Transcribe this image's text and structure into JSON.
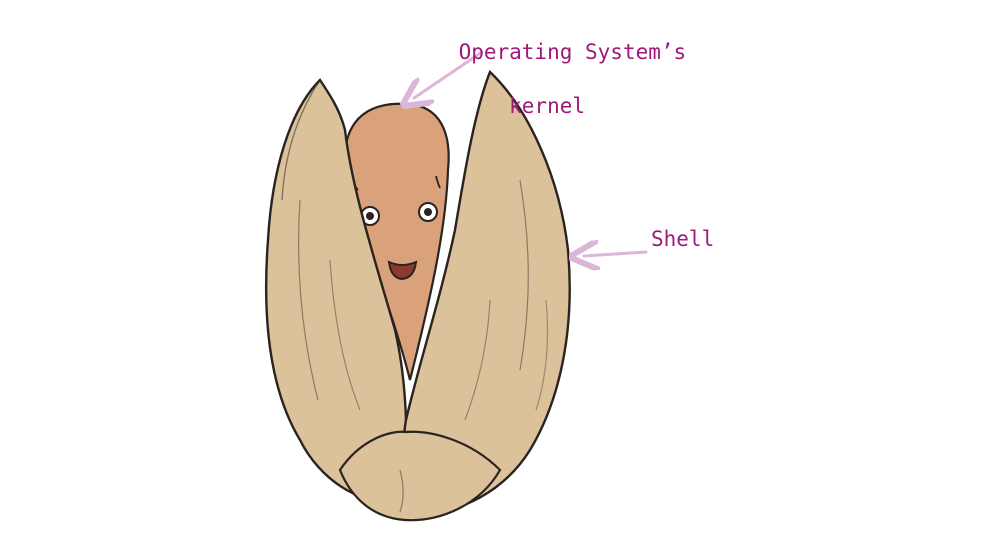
{
  "labels": {
    "kernel_line1": "Operating System’s",
    "kernel_line2": "kernel",
    "shell": "Shell"
  },
  "colors": {
    "label_text": "#a0197a",
    "arrow": "#dcb6d6",
    "shell_fill": "#dcc29a",
    "kernel_fill": "#d9a27a",
    "outline": "#2a2320"
  },
  "icons": [
    "pistachio-shell-icon",
    "kernel-face-icon"
  ]
}
